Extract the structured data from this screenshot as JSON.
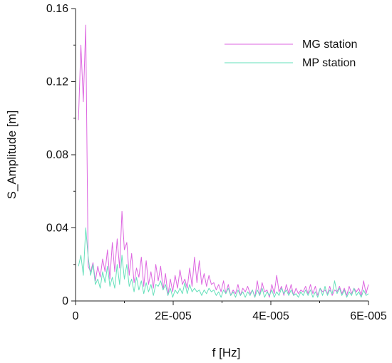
{
  "chart_data": {
    "type": "line",
    "xlabel": "f [Hz]",
    "ylabel": "S_Amplitude [m]",
    "xlim": [
      0,
      6e-05
    ],
    "ylim": [
      0,
      0.16
    ],
    "x_ticks": [
      0,
      2e-05,
      4e-05,
      6e-05
    ],
    "x_tick_labels": [
      "0",
      "2E-005",
      "4E-005",
      "6E-005"
    ],
    "y_ticks": [
      0,
      0.04,
      0.08,
      0.12,
      0.16
    ],
    "y_tick_labels": [
      "0",
      "0.04",
      "0.08",
      "0.12",
      "0.16"
    ],
    "grid": false,
    "legend_position": "top-right",
    "colors": {
      "MG station": "#dd66e0",
      "MP station": "#66e0bb"
    },
    "series": [
      {
        "name": "MG station",
        "values": [
          0.099,
          0.14,
          0.109,
          0.151,
          0.019,
          0.016,
          0.021,
          0.011,
          0.019,
          0.013,
          0.023,
          0.016,
          0.028,
          0.012,
          0.032,
          0.016,
          0.034,
          0.018,
          0.049,
          0.028,
          0.032,
          0.014,
          0.026,
          0.01,
          0.018,
          0.013,
          0.024,
          0.008,
          0.022,
          0.009,
          0.016,
          0.007,
          0.02,
          0.011,
          0.019,
          0.006,
          0.015,
          0.003,
          0.012,
          0.005,
          0.014,
          0.007,
          0.017,
          0.009,
          0.012,
          0.007,
          0.018,
          0.008,
          0.024,
          0.01,
          0.022,
          0.009,
          0.015,
          0.008,
          0.014,
          0.009,
          0.01,
          0.006,
          0.009,
          0.005,
          0.011,
          0.004,
          0.009,
          0.003,
          0.006,
          0.004,
          0.009,
          0.003,
          0.007,
          0.005,
          0.008,
          0.004,
          0.006,
          0.002,
          0.011,
          0.003,
          0.01,
          0.005,
          0.006,
          0.002,
          0.009,
          0.004,
          0.014,
          0.005,
          0.008,
          0.003,
          0.009,
          0.004,
          0.009,
          0.003,
          0.007,
          0.004,
          0.006,
          0.005,
          0.008,
          0.004,
          0.009,
          0.004,
          0.008,
          0.003,
          0.007,
          0.005,
          0.006,
          0.004,
          0.008,
          0.003,
          0.006,
          0.005,
          0.008,
          0.004,
          0.007,
          0.003,
          0.008,
          0.004,
          0.007,
          0.005,
          0.007,
          0.003,
          0.011,
          0.004,
          0.009
        ]
      },
      {
        "name": "MP station",
        "values": [
          0.019,
          0.025,
          0.014,
          0.04,
          0.024,
          0.014,
          0.02,
          0.009,
          0.012,
          0.007,
          0.016,
          0.01,
          0.019,
          0.008,
          0.013,
          0.007,
          0.02,
          0.009,
          0.025,
          0.012,
          0.02,
          0.008,
          0.012,
          0.005,
          0.013,
          0.006,
          0.011,
          0.004,
          0.01,
          0.005,
          0.009,
          0.003,
          0.009,
          0.008,
          0.011,
          0.006,
          0.009,
          0.003,
          0.007,
          0.002,
          0.006,
          0.004,
          0.007,
          0.004,
          0.01,
          0.004,
          0.009,
          0.005,
          0.007,
          0.005,
          0.006,
          0.003,
          0.006,
          0.004,
          0.007,
          0.005,
          0.006,
          0.003,
          0.005,
          0.002,
          0.006,
          0.004,
          0.007,
          0.003,
          0.005,
          0.002,
          0.006,
          0.003,
          0.005,
          0.002,
          0.005,
          0.003,
          0.006,
          0.002,
          0.006,
          0.003,
          0.007,
          0.002,
          0.005,
          0.003,
          0.006,
          0.002,
          0.005,
          0.003,
          0.007,
          0.004,
          0.006,
          0.003,
          0.006,
          0.003,
          0.004,
          0.002,
          0.005,
          0.003,
          0.006,
          0.003,
          0.006,
          0.002,
          0.005,
          0.002,
          0.007,
          0.003,
          0.008,
          0.003,
          0.006,
          0.004,
          0.011,
          0.004,
          0.007,
          0.003,
          0.006,
          0.002,
          0.005,
          0.003,
          0.007,
          0.003,
          0.005,
          0.002,
          0.006,
          0.003,
          0.004
        ]
      }
    ]
  }
}
